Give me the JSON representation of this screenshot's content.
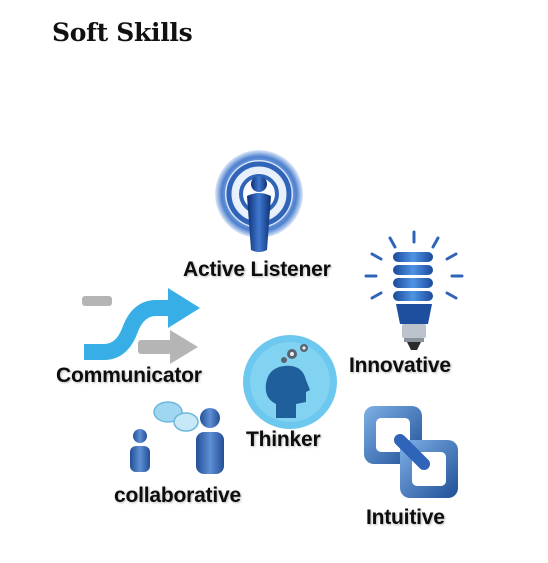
{
  "title": "Soft Skills",
  "skills": {
    "active_listener": "Active Listener",
    "innovative": "Innovative",
    "communicator": "Communicator",
    "thinker": "Thinker",
    "collaborative": "collaborative",
    "intuitive": "Intuitive"
  },
  "colors": {
    "icon_blue": "#2f64b8",
    "light_blue": "#5cc3ee",
    "gray": "#b5b5b5",
    "text": "#0d0d0d"
  },
  "icons": {
    "active_listener": "broadcasting-person-icon",
    "innovative": "light-bulb-icon",
    "communicator": "shuffle-arrows-icon",
    "thinker": "thinking-head-icon",
    "collaborative": "chatting-people-icon",
    "intuitive": "linked-squares-icon"
  }
}
